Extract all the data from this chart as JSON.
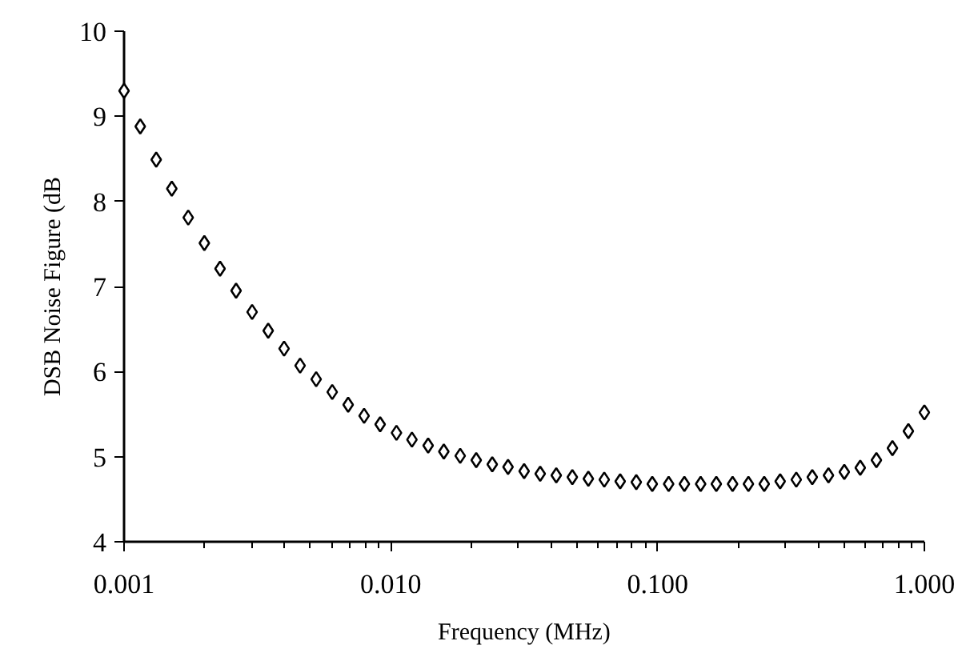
{
  "chart_data": {
    "type": "scatter",
    "xlabel": "Frequency (MHz)",
    "ylabel": "DSB Noise Figure (dB",
    "log": "x",
    "marker": "diamond",
    "grid": false,
    "x": [
      0.001,
      0.00115,
      0.00132,
      0.00151,
      0.00174,
      0.002,
      0.00229,
      0.00263,
      0.00302,
      0.00347,
      0.00398,
      0.00457,
      0.00525,
      0.00603,
      0.00692,
      0.00794,
      0.00912,
      0.0105,
      0.012,
      0.0138,
      0.0158,
      0.0182,
      0.0209,
      0.024,
      0.0275,
      0.0316,
      0.0363,
      0.0417,
      0.0479,
      0.055,
      0.0631,
      0.0724,
      0.0832,
      0.0955,
      0.11,
      0.126,
      0.145,
      0.166,
      0.191,
      0.219,
      0.251,
      0.288,
      0.331,
      0.38,
      0.437,
      0.501,
      0.575,
      0.661,
      0.759,
      0.871,
      1
    ],
    "series": [
      {
        "color": "#000000",
        "values": [
          9.3,
          8.88,
          8.49,
          8.15,
          7.81,
          7.51,
          7.21,
          6.95,
          6.7,
          6.48,
          6.27,
          6.07,
          5.91,
          5.76,
          5.61,
          5.48,
          5.38,
          5.28,
          5.2,
          5.13,
          5.06,
          5.01,
          4.96,
          4.91,
          4.88,
          4.83,
          4.8,
          4.78,
          4.76,
          4.74,
          4.73,
          4.71,
          4.7,
          4.68,
          4.68,
          4.68,
          4.68,
          4.68,
          4.68,
          4.68,
          4.68,
          4.71,
          4.73,
          4.76,
          4.78,
          4.82,
          4.87,
          4.96,
          5.1,
          5.3,
          5.52
        ]
      }
    ],
    "xlim": [
      0.001,
      1
    ],
    "ylim": [
      4,
      10
    ],
    "xticks": [
      {
        "value": 0.001,
        "label": "0.001"
      },
      {
        "value": 0.002,
        "label": null
      },
      {
        "value": 0.003,
        "label": null
      },
      {
        "value": 0.004,
        "label": null
      },
      {
        "value": 0.005,
        "label": null
      },
      {
        "value": 0.006,
        "label": null
      },
      {
        "value": 0.007,
        "label": null
      },
      {
        "value": 0.008,
        "label": null
      },
      {
        "value": 0.009,
        "label": null
      },
      {
        "value": 0.01,
        "label": "0.010"
      },
      {
        "value": 0.02,
        "label": null
      },
      {
        "value": 0.03,
        "label": null
      },
      {
        "value": 0.04,
        "label": null
      },
      {
        "value": 0.05,
        "label": null
      },
      {
        "value": 0.06,
        "label": null
      },
      {
        "value": 0.07,
        "label": null
      },
      {
        "value": 0.08,
        "label": null
      },
      {
        "value": 0.09,
        "label": null
      },
      {
        "value": 0.1,
        "label": "0.100"
      },
      {
        "value": 0.2,
        "label": null
      },
      {
        "value": 0.3,
        "label": null
      },
      {
        "value": 0.4,
        "label": null
      },
      {
        "value": 0.5,
        "label": null
      },
      {
        "value": 0.6,
        "label": null
      },
      {
        "value": 0.7,
        "label": null
      },
      {
        "value": 0.8,
        "label": null
      },
      {
        "value": 0.9,
        "label": null
      },
      {
        "value": 1,
        "label": "1.000"
      }
    ],
    "yticks": [
      4,
      5,
      6,
      7,
      8,
      9,
      10
    ]
  }
}
